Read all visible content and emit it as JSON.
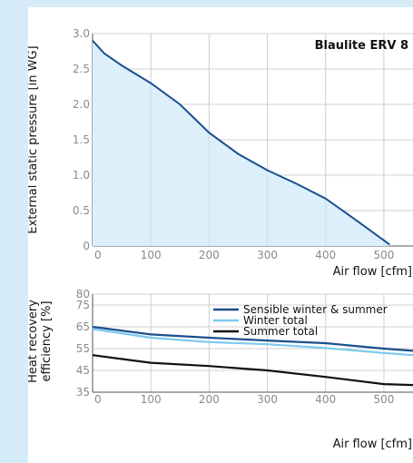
{
  "chart_data": [
    {
      "type": "area",
      "title": "Blaulite ERV 8",
      "xlabel": "Air flow [cfm]",
      "ylabel": "External static pressure [in WG]",
      "xlim": [
        0,
        550
      ],
      "ylim": [
        0,
        3.0
      ],
      "xticks": [
        "0",
        "100",
        "200",
        "300",
        "400",
        "500"
      ],
      "yticks": [
        "0",
        "0.5",
        "1.0",
        "1.5",
        "2.0",
        "2.5",
        "3.0"
      ],
      "grid": true,
      "fill_color": "#dceffa",
      "line_color": "#1a4f8f",
      "series": [
        {
          "x": [
            0,
            20,
            50,
            100,
            150,
            200,
            250,
            300,
            350,
            400,
            450,
            510
          ],
          "y": [
            2.9,
            2.72,
            2.55,
            2.3,
            2.0,
            1.6,
            1.3,
            1.07,
            0.88,
            0.67,
            0.38,
            0.02
          ]
        }
      ]
    },
    {
      "type": "line",
      "xlabel": "Air flow [cfm]",
      "ylabel": "Heat recovery efficiency [%]",
      "ylabel_lines": [
        "Heat recovery",
        "efficiency [%]"
      ],
      "xlim": [
        0,
        550
      ],
      "ylim": [
        35,
        80
      ],
      "xticks": [
        "0",
        "100",
        "200",
        "300",
        "400",
        "500"
      ],
      "yticks": [
        "35",
        "45",
        "55",
        "65",
        "75",
        "80"
      ],
      "ytick_values": [
        35,
        45,
        55,
        65,
        75,
        80
      ],
      "grid": true,
      "legend_position": "top-right",
      "x": [
        0,
        100,
        200,
        300,
        400,
        500,
        550
      ],
      "series": [
        {
          "name": "Sensible winter & summer",
          "color": "#1a4f8f",
          "values": [
            65,
            61.5,
            60,
            58.7,
            57.5,
            55,
            54
          ]
        },
        {
          "name": "Winter total",
          "color": "#7cc9ee",
          "values": [
            64,
            60,
            58,
            57,
            55.3,
            53,
            52
          ]
        },
        {
          "name": "Summer total",
          "color": "#111111",
          "values": [
            52,
            48.5,
            47,
            45,
            42,
            38.7,
            38.3
          ]
        }
      ]
    }
  ]
}
